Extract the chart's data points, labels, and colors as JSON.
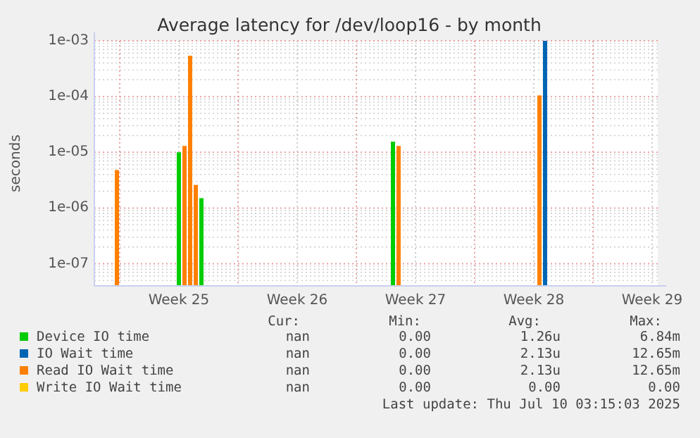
{
  "chart_data": {
    "type": "bar",
    "title": "Average latency for /dev/loop16 - by month",
    "ylabel": "seconds",
    "log": "y",
    "grid": true,
    "legend": "bottom",
    "categories": [
      null,
      null,
      null,
      null,
      null,
      null,
      null,
      null,
      null,
      null,
      null,
      null,
      null,
      null,
      null,
      "Week 25",
      null,
      null,
      null,
      null,
      null,
      null,
      null,
      null,
      null,
      null,
      null,
      null,
      null,
      null,
      null,
      null,
      null,
      null,
      null,
      null,
      "Week 26",
      null,
      null,
      null,
      null,
      null,
      null,
      null,
      null,
      null,
      null,
      null,
      null,
      null,
      null,
      null,
      null,
      null,
      null,
      null,
      null,
      "Week 27",
      null,
      null,
      null,
      null,
      null,
      null,
      null,
      null,
      null,
      null,
      null,
      null,
      null,
      null,
      null,
      null,
      null,
      null,
      null,
      null,
      "Week 28",
      null,
      null,
      null,
      null,
      null,
      null,
      null,
      null,
      null,
      null,
      null,
      null,
      null,
      null,
      null,
      null,
      null,
      null,
      null,
      null,
      "Week 29",
      null
    ],
    "ylim": [
      4e-08,
      0.001
    ],
    "yticks": [
      {
        "value": 1e-07,
        "label": "1e-07"
      },
      {
        "value": 1e-06,
        "label": "1e-06"
      },
      {
        "value": 1e-05,
        "label": "1e-05"
      },
      {
        "value": 0.0001,
        "label": "1e-04"
      },
      {
        "value": 0.001,
        "label": "1e-03"
      }
    ],
    "series": [
      {
        "name": "Device IO time",
        "color": "#00cc00",
        "values": [
          null,
          null,
          null,
          null,
          null,
          null,
          null,
          null,
          null,
          null,
          null,
          null,
          null,
          null,
          null,
          1e-05,
          null,
          null,
          null,
          1.5e-06,
          null,
          null,
          null,
          null,
          null,
          null,
          null,
          null,
          null,
          null,
          null,
          null,
          null,
          null,
          null,
          null,
          null,
          null,
          null,
          null,
          null,
          null,
          null,
          null,
          null,
          null,
          null,
          null,
          null,
          null,
          null,
          null,
          null,
          1.55e-05,
          null,
          null,
          null,
          null,
          null,
          null,
          null,
          null,
          null,
          null,
          null,
          null,
          null,
          null,
          null,
          null,
          null,
          null,
          null,
          null,
          null,
          null,
          null,
          null,
          null,
          null,
          null,
          null,
          null,
          null,
          null,
          null,
          null,
          null,
          null,
          null,
          null,
          null,
          null,
          null,
          null,
          null,
          null,
          null,
          null,
          null,
          null
        ]
      },
      {
        "name": "IO Wait time",
        "color": "#0066b3",
        "values": [
          null,
          null,
          null,
          null,
          null,
          null,
          null,
          null,
          null,
          null,
          null,
          null,
          null,
          null,
          null,
          null,
          null,
          null,
          null,
          null,
          null,
          null,
          null,
          null,
          null,
          null,
          null,
          null,
          null,
          null,
          null,
          null,
          null,
          null,
          null,
          null,
          null,
          null,
          null,
          null,
          null,
          null,
          null,
          null,
          null,
          null,
          null,
          null,
          null,
          null,
          null,
          null,
          null,
          null,
          null,
          null,
          null,
          null,
          null,
          null,
          null,
          null,
          null,
          null,
          null,
          null,
          null,
          null,
          null,
          null,
          null,
          null,
          null,
          null,
          null,
          null,
          null,
          null,
          null,
          null,
          0.001,
          null,
          null,
          null,
          null,
          null,
          null,
          null,
          null,
          null,
          null,
          null,
          null,
          null,
          null,
          null,
          null,
          null,
          null,
          null,
          null
        ]
      },
      {
        "name": "Read IO Wait time",
        "color": "#ff8000",
        "values": [
          null,
          null,
          null,
          null,
          4.8e-06,
          null,
          null,
          null,
          null,
          null,
          null,
          null,
          null,
          null,
          null,
          null,
          1.3e-05,
          0.00054,
          2.6e-06,
          null,
          null,
          null,
          null,
          null,
          null,
          null,
          null,
          null,
          null,
          null,
          null,
          null,
          null,
          null,
          null,
          null,
          null,
          null,
          null,
          null,
          null,
          null,
          null,
          null,
          null,
          null,
          null,
          null,
          null,
          null,
          null,
          null,
          null,
          null,
          1.3e-05,
          null,
          null,
          null,
          null,
          null,
          null,
          null,
          null,
          null,
          null,
          null,
          null,
          null,
          null,
          null,
          null,
          null,
          null,
          null,
          null,
          null,
          null,
          null,
          null,
          0.000105,
          null,
          null,
          null,
          null,
          null,
          null,
          null,
          null,
          null,
          null,
          null,
          null,
          null,
          null,
          null,
          null,
          null,
          null,
          null,
          null,
          null
        ]
      },
      {
        "name": "Write IO Wait time",
        "color": "#ffcc00",
        "values": [
          null,
          null,
          null,
          null,
          null,
          null,
          null,
          null,
          null,
          null,
          null,
          null,
          null,
          null,
          null,
          null,
          null,
          null,
          null,
          null,
          null,
          null,
          null,
          null,
          null,
          null,
          null,
          null,
          null,
          null,
          null,
          null,
          null,
          null,
          null,
          null,
          null,
          null,
          null,
          null,
          null,
          null,
          null,
          null,
          null,
          null,
          null,
          null,
          null,
          null,
          null,
          null,
          null,
          null,
          null,
          null,
          null,
          null,
          null,
          null,
          null,
          null,
          null,
          null,
          null,
          null,
          null,
          null,
          null,
          null,
          null,
          null,
          null,
          null,
          null,
          null,
          null,
          null,
          null,
          null,
          null,
          null,
          null,
          null,
          null,
          null,
          null,
          null,
          null,
          null,
          null,
          null,
          null,
          null,
          null,
          null,
          null,
          null,
          null,
          null,
          null
        ]
      }
    ],
    "annotations": [
      "Cur:",
      "Min:",
      "Avg:",
      "Max:",
      "nan",
      "0.00",
      "1.26u",
      "6.84m",
      "nan",
      "0.00",
      "2.13u",
      "12.65m",
      "nan",
      "0.00",
      "2.13u",
      "12.65m",
      "nan",
      "0.00",
      "0.00",
      "0.00",
      "Last update: Thu Jul 10 03:15:03 2025"
    ]
  }
}
